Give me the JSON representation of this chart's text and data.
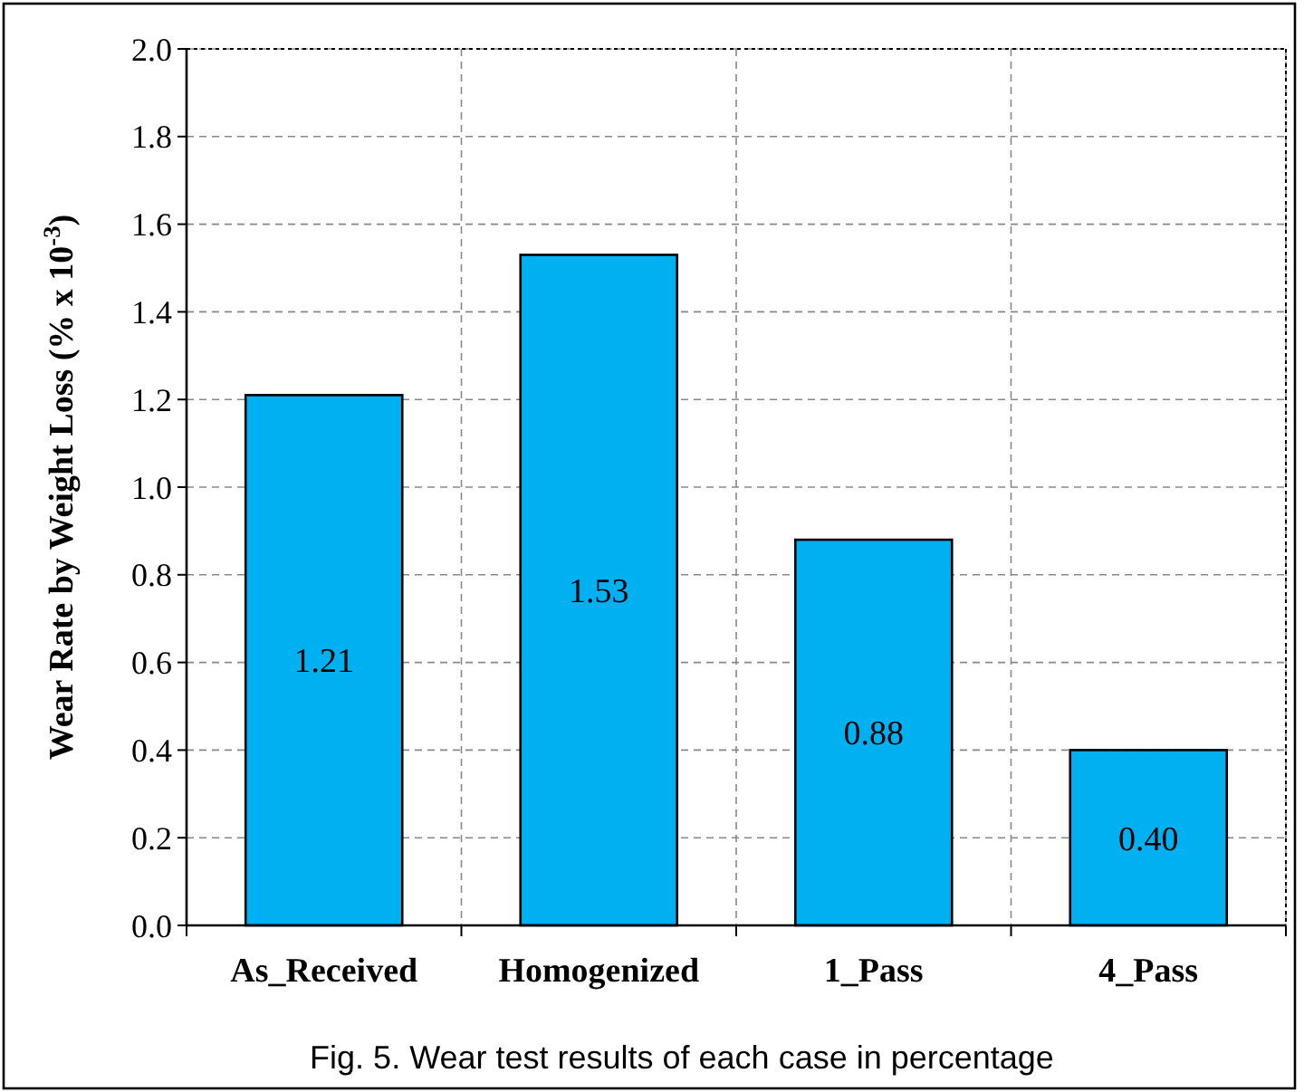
{
  "chart_data": {
    "type": "bar",
    "ylabel": "Wear Rate by Weight Loss (% x 10$^{-3}$)",
    "categories": [
      "As_Received",
      "Homogenized",
      "1_Pass",
      "4_Pass"
    ],
    "values": [
      1.21,
      1.53,
      0.88,
      0.4
    ],
    "value_labels": [
      "1.21",
      "1.53",
      "0.88",
      "0.40"
    ],
    "color": "#00b0f0",
    "ylim": [
      0,
      2
    ],
    "yticks": [
      {
        "value": 0,
        "label": "0.0"
      },
      {
        "value": 0.2,
        "label": "0.2"
      },
      {
        "value": 0.4,
        "label": "0.4"
      },
      {
        "value": 0.6,
        "label": "0.6"
      },
      {
        "value": 0.8,
        "label": "0.8"
      },
      {
        "value": 1,
        "label": "1.0"
      },
      {
        "value": 1.2,
        "label": "1.2"
      },
      {
        "value": 1.4,
        "label": "1.4"
      },
      {
        "value": 1.6,
        "label": "1.6"
      },
      {
        "value": 1.8,
        "label": "1.8"
      },
      {
        "value": 2,
        "label": "2.0"
      }
    ],
    "grid": true,
    "annotations": [
      "Fig. 5. Wear test results of each case in percentage"
    ]
  }
}
